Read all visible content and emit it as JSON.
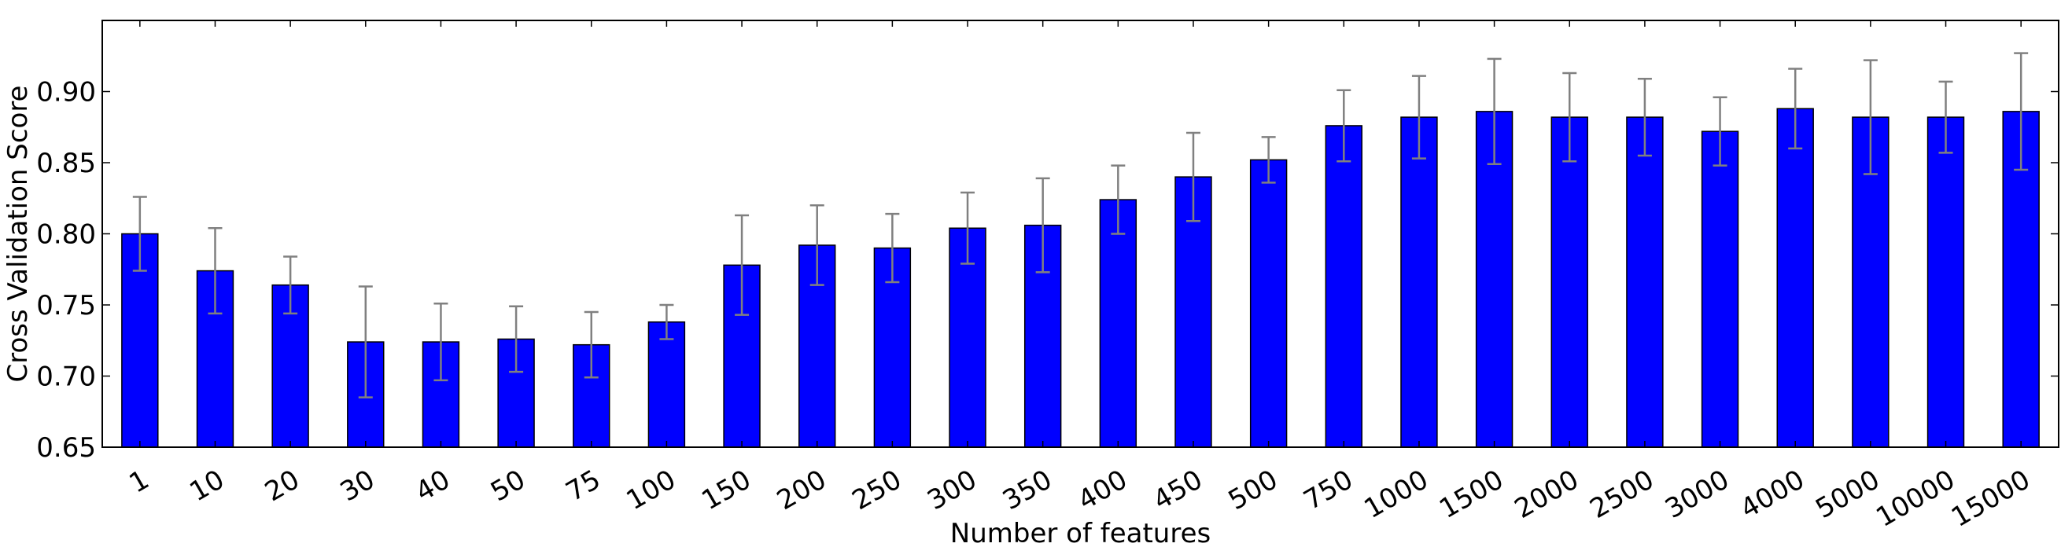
{
  "chart_data": {
    "type": "bar",
    "title": "",
    "xlabel": "Number of features",
    "ylabel": "Cross Validation Score",
    "ylim": [
      0.65,
      0.95
    ],
    "yticks": [
      0.65,
      0.7,
      0.75,
      0.8,
      0.85,
      0.9
    ],
    "ytick_labels": [
      "0.65",
      "0.70",
      "0.75",
      "0.80",
      "0.85",
      "0.90"
    ],
    "grid": false,
    "legend": "none",
    "bar_color": "#0000ff",
    "error_bar_color": "#808080",
    "categories": [
      "1",
      "10",
      "20",
      "30",
      "40",
      "50",
      "75",
      "100",
      "150",
      "200",
      "250",
      "300",
      "350",
      "400",
      "450",
      "500",
      "750",
      "1000",
      "1500",
      "2000",
      "2500",
      "3000",
      "4000",
      "5000",
      "10000",
      "15000"
    ],
    "values": [
      0.8,
      0.774,
      0.764,
      0.724,
      0.724,
      0.726,
      0.722,
      0.738,
      0.778,
      0.792,
      0.79,
      0.804,
      0.806,
      0.824,
      0.84,
      0.852,
      0.876,
      0.882,
      0.886,
      0.882,
      0.882,
      0.872,
      0.888,
      0.882,
      0.882,
      0.886
    ],
    "errors": [
      0.026,
      0.03,
      0.02,
      0.039,
      0.027,
      0.023,
      0.023,
      0.012,
      0.035,
      0.028,
      0.024,
      0.025,
      0.033,
      0.024,
      0.031,
      0.016,
      0.025,
      0.029,
      0.037,
      0.031,
      0.027,
      0.024,
      0.028,
      0.04,
      0.025,
      0.041
    ]
  }
}
